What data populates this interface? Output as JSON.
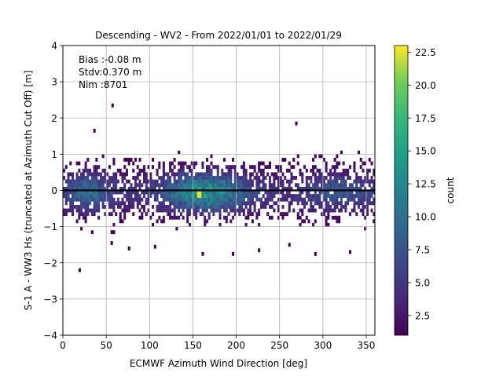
{
  "chart_data": {
    "type": "heatmap",
    "title": "Descending - WV2 - From 2022/01/01 to 2022/01/29",
    "xlabel": "ECMWF Azimuth Wind Direction [deg]",
    "ylabel": "S-1 A - WW3 Hs (truncated at Azimuth Cut Off) [m]",
    "xlim": [
      0,
      360
    ],
    "ylim": [
      -4,
      4
    ],
    "xticks": [
      "0",
      "50",
      "100",
      "150",
      "200",
      "250",
      "300",
      "350"
    ],
    "yticks": [
      "4",
      "3",
      "2",
      "1",
      "0",
      "−1",
      "−2",
      "−3",
      "−4"
    ],
    "grid": true,
    "zero_line": 0,
    "annotations": [
      "Bias :-0.08 m",
      "Stdv:0.370 m",
      "Nim :8701"
    ],
    "colorbar": {
      "label": "count",
      "colormap": "viridis",
      "range": [
        1,
        23
      ],
      "ticks": [
        "2.5",
        "5.0",
        "7.5",
        "10.0",
        "12.5",
        "15.0",
        "17.5",
        "20.0",
        "22.5"
      ]
    },
    "bin_width": [
      2.5,
      0.1
    ],
    "outliers": [
      [
        56,
        2.3
      ],
      [
        35,
        1.6
      ],
      [
        268,
        1.8
      ],
      [
        18,
        -2.25
      ],
      [
        160,
        -1.8
      ],
      [
        195,
        -1.8
      ],
      [
        225,
        -1.7
      ],
      [
        260,
        -1.55
      ],
      [
        290,
        -1.8
      ],
      [
        330,
        -1.75
      ],
      [
        105,
        -1.6
      ],
      [
        75,
        -1.65
      ],
      [
        55,
        -1.5
      ]
    ]
  }
}
